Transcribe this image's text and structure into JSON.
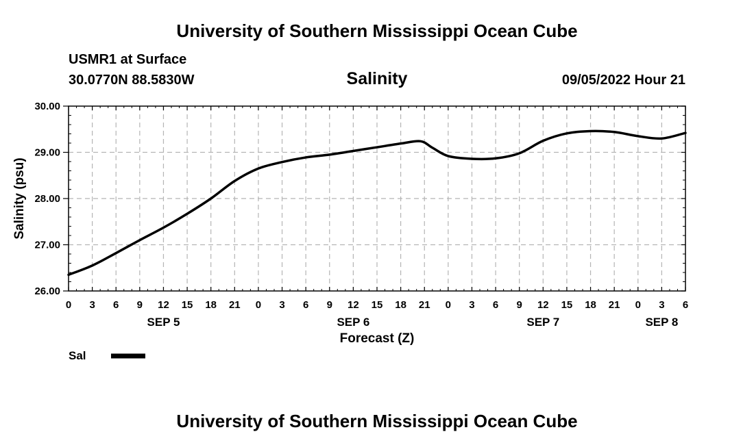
{
  "header": {
    "title": "University of Southern Mississippi Ocean Cube",
    "station": "USMR1 at Surface",
    "coordinates": "30.0770N  88.5830W",
    "datetime": "09/05/2022 Hour 21"
  },
  "footer": {
    "title": "University of Southern Mississippi Ocean Cube"
  },
  "chart_data": {
    "type": "line",
    "title": "Salinity",
    "xlabel": "Forecast (Z)",
    "ylabel": "Salinity (psu)",
    "ylim": [
      26.0,
      30.0
    ],
    "xlim": [
      0,
      78
    ],
    "x_units": "hours since SEP 5 00Z",
    "yticks": [
      "26.00",
      "27.00",
      "28.00",
      "29.00",
      "30.00"
    ],
    "yticks_values": [
      26,
      27,
      28,
      29,
      30
    ],
    "xtick_hours": [
      0,
      3,
      6,
      9,
      12,
      15,
      18,
      21,
      24,
      27,
      30,
      33,
      36,
      39,
      42,
      45,
      48,
      51,
      54,
      57,
      60,
      63,
      66,
      69,
      72,
      75,
      78
    ],
    "xtick_labels": [
      "0",
      "3",
      "6",
      "9",
      "12",
      "15",
      "18",
      "21",
      "0",
      "3",
      "6",
      "9",
      "12",
      "15",
      "18",
      "21",
      "0",
      "3",
      "6",
      "9",
      "12",
      "15",
      "18",
      "21",
      "0",
      "3",
      "6"
    ],
    "day_labels": [
      {
        "label": "SEP 5",
        "hour": 12
      },
      {
        "label": "SEP 6",
        "hour": 36
      },
      {
        "label": "SEP 7",
        "hour": 60
      },
      {
        "label": "SEP 8",
        "hour": 75
      }
    ],
    "grid": true,
    "legend": {
      "position": "bottom-left",
      "entries": [
        {
          "name": "Sal",
          "color": "#000000"
        }
      ]
    },
    "series": [
      {
        "name": "Sal",
        "color": "#000000",
        "x": [
          0,
          3,
          6,
          9,
          12,
          15,
          18,
          21,
          24,
          27,
          30,
          33,
          36,
          39,
          42,
          44.5,
          46,
          48,
          51,
          54,
          57,
          60,
          63,
          66,
          69,
          72,
          75,
          78
        ],
        "values": [
          26.35,
          26.55,
          26.82,
          27.1,
          27.37,
          27.67,
          28.0,
          28.38,
          28.65,
          28.79,
          28.89,
          28.95,
          29.03,
          29.11,
          29.19,
          29.24,
          29.1,
          28.92,
          28.86,
          28.87,
          28.98,
          29.25,
          29.41,
          29.46,
          29.44,
          29.35,
          29.3,
          29.42
        ]
      }
    ]
  }
}
